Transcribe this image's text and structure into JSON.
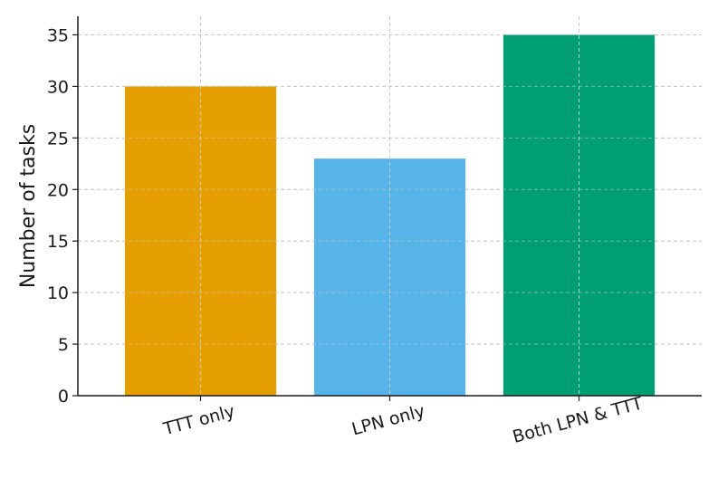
{
  "chart_data": {
    "type": "bar",
    "title": "",
    "xlabel": "",
    "ylabel": "Number of tasks",
    "categories": [
      "TTT only",
      "LPN only",
      "Both LPN & TTT"
    ],
    "values": [
      30,
      23,
      35
    ],
    "colors": [
      "#E69F00",
      "#56B4E9",
      "#009E73"
    ],
    "ylim": [
      0,
      36.8
    ],
    "yticks": [
      0,
      5,
      10,
      15,
      20,
      25,
      30,
      35
    ],
    "grid": true,
    "xtick_rotation_deg": -15
  }
}
